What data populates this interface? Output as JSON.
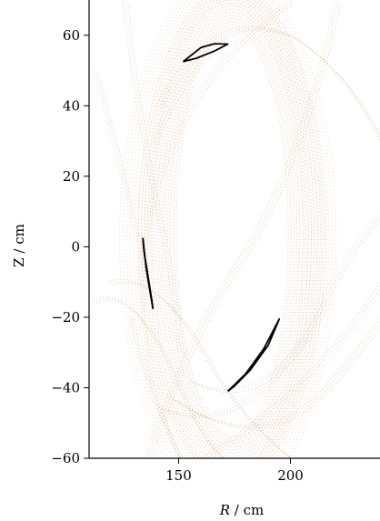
{
  "chart_data": {
    "type": "scatter",
    "xlabel_var": "R",
    "xlabel_unit": " / cm",
    "ylabel": "Z / cm",
    "xlim": [
      110,
      240
    ],
    "ylim": [
      -60,
      70
    ],
    "xticks": [
      150,
      200
    ],
    "yticks": [
      60,
      40,
      20,
      0,
      -20,
      -40,
      -60
    ],
    "ytick_labels": [
      "60",
      "40",
      "20",
      "0",
      "−20",
      "−40",
      "−60"
    ],
    "colors": {
      "orange_traces": "#d98a4a",
      "blue_traces": "#9ec7e6",
      "black_curves": "#000000"
    },
    "series": [
      {
        "marker": "curve",
        "color": "#000000",
        "points": [
          [
            152,
            52.5
          ],
          [
            160,
            56.5
          ],
          [
            166,
            57.6
          ],
          [
            172,
            57.5
          ],
          [
            166,
            55.5
          ],
          [
            158,
            53.5
          ],
          [
            152,
            52.5
          ]
        ]
      },
      {
        "marker": "curve",
        "color": "#000000",
        "points": [
          [
            134,
            2.5
          ],
          [
            135,
            -3
          ],
          [
            136.5,
            -9
          ],
          [
            138,
            -15
          ],
          [
            138.5,
            -17.5
          ],
          [
            137,
            -12
          ],
          [
            135.5,
            -6
          ],
          [
            134.5,
            -1
          ],
          [
            134,
            2.5
          ]
        ]
      },
      {
        "marker": "curve",
        "color": "#000000",
        "points": [
          [
            172,
            -41
          ],
          [
            180,
            -36
          ],
          [
            188,
            -29
          ],
          [
            195,
            -20.5
          ],
          [
            190,
            -28
          ],
          [
            182,
            -35
          ],
          [
            175,
            -39.5
          ],
          [
            172,
            -41
          ]
        ]
      }
    ]
  }
}
